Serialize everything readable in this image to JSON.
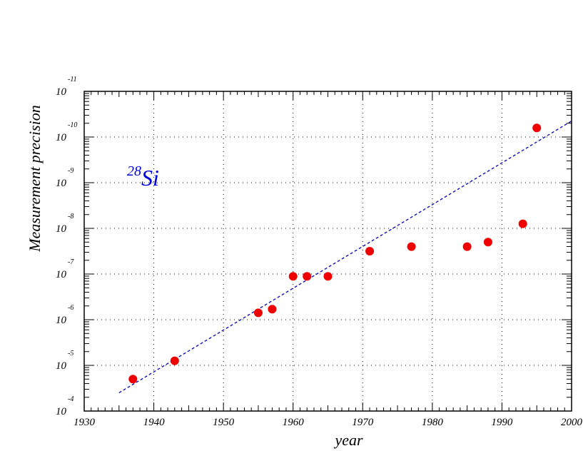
{
  "chart_data": {
    "type": "scatter",
    "title": "",
    "xlabel": "year",
    "ylabel": "Measurement precision",
    "xlim": [
      1930,
      2000
    ],
    "ylim": [
      -4,
      -11
    ],
    "y_scale": "log10",
    "grid": true,
    "x_ticks": [
      "1930",
      "1940",
      "1950",
      "1960",
      "1970",
      "1980",
      "1990",
      "2000"
    ],
    "y_ticks": [
      {
        "base": "10",
        "exp": "-4"
      },
      {
        "base": "10",
        "exp": "-5"
      },
      {
        "base": "10",
        "exp": "-6"
      },
      {
        "base": "10",
        "exp": "-7"
      },
      {
        "base": "10",
        "exp": "-8"
      },
      {
        "base": "10",
        "exp": "-9"
      },
      {
        "base": "10",
        "exp": "-10"
      },
      {
        "base": "10",
        "exp": "-11"
      }
    ],
    "annotation": {
      "superscript": "28",
      "text": "Si",
      "color": "#0000dd"
    },
    "series": [
      {
        "type": "points",
        "color": "#ee0000",
        "x": [
          1937,
          1943,
          1955,
          1957,
          1960,
          1962,
          1965,
          1971,
          1977,
          1985,
          1988,
          1993,
          1995
        ],
        "y": [
          -4.7,
          -5.1,
          -6.15,
          -6.23,
          -6.95,
          -6.95,
          -6.95,
          -7.5,
          -7.6,
          -7.6,
          -7.7,
          -8.1,
          -10.2
        ]
      },
      {
        "type": "dashed-line",
        "color": "#0000cc",
        "x": [
          1935,
          2000
        ],
        "y": [
          -4.4,
          -10.35
        ]
      }
    ]
  }
}
